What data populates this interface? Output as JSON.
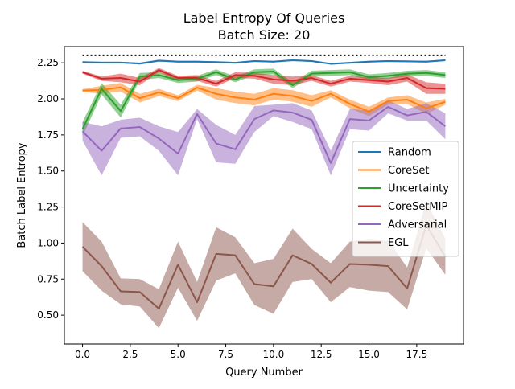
{
  "chart_data": {
    "type": "line",
    "title": "Label Entropy Of Queries",
    "subtitle": "Batch Size: 20",
    "xlabel": "Query Number",
    "ylabel": "Batch Label Entropy",
    "xlim": [
      -0.95,
      19.95
    ],
    "ylim": [
      0.3,
      2.3625
    ],
    "xticks": [
      0.0,
      2.5,
      5.0,
      7.5,
      10.0,
      12.5,
      15.0,
      17.5
    ],
    "xtick_labels": [
      "0.0",
      "2.5",
      "5.0",
      "7.5",
      "10.0",
      "12.5",
      "15.0",
      "17.5"
    ],
    "yticks": [
      0.5,
      0.75,
      1.0,
      1.25,
      1.5,
      1.75,
      2.0,
      2.25
    ],
    "ytick_labels": [
      "0.50",
      "0.75",
      "1.00",
      "1.25",
      "1.50",
      "1.75",
      "2.00",
      "2.25"
    ],
    "grid": false,
    "legend_position": "center-right",
    "reference_line": {
      "y": 2.302,
      "style": "dotted",
      "color": "#000000"
    },
    "x": [
      0,
      1,
      2,
      3,
      4,
      5,
      6,
      7,
      8,
      9,
      10,
      11,
      12,
      13,
      14,
      15,
      16,
      17,
      18,
      19
    ],
    "series": [
      {
        "name": "Random",
        "color": "#1f77b4",
        "values": [
          2.255,
          2.252,
          2.252,
          2.245,
          2.265,
          2.258,
          2.258,
          2.255,
          2.25,
          2.262,
          2.258,
          2.268,
          2.262,
          2.243,
          2.25,
          2.258,
          2.262,
          2.26,
          2.258,
          2.268
        ],
        "lower": [
          2.25,
          2.247,
          2.247,
          2.238,
          2.258,
          2.252,
          2.252,
          2.25,
          2.244,
          2.256,
          2.252,
          2.262,
          2.256,
          2.237,
          2.244,
          2.252,
          2.256,
          2.254,
          2.252,
          2.262
        ],
        "upper": [
          2.26,
          2.257,
          2.257,
          2.252,
          2.272,
          2.264,
          2.264,
          2.26,
          2.256,
          2.268,
          2.264,
          2.274,
          2.268,
          2.249,
          2.256,
          2.264,
          2.268,
          2.266,
          2.264,
          2.274
        ]
      },
      {
        "name": "CoreSet",
        "color": "#ff7f0e",
        "values": [
          2.058,
          2.062,
          2.08,
          2.005,
          2.045,
          2.005,
          2.078,
          2.035,
          2.01,
          1.995,
          2.035,
          2.02,
          1.985,
          2.035,
          1.965,
          1.912,
          1.985,
          1.995,
          1.935,
          1.98
        ],
        "lower": [
          2.048,
          2.035,
          2.05,
          1.975,
          2.02,
          1.985,
          2.058,
          1.995,
          1.97,
          1.955,
          1.995,
          1.98,
          1.945,
          2.01,
          1.935,
          1.88,
          1.96,
          1.965,
          1.895,
          1.96
        ],
        "upper": [
          2.068,
          2.09,
          2.11,
          2.035,
          2.07,
          2.025,
          2.098,
          2.075,
          2.05,
          2.035,
          2.075,
          2.06,
          2.025,
          2.06,
          1.995,
          1.945,
          2.01,
          2.025,
          1.975,
          2.0
        ]
      },
      {
        "name": "Uncertainty",
        "color": "#2ca02c",
        "values": [
          1.79,
          2.07,
          1.915,
          2.155,
          2.165,
          2.13,
          2.14,
          2.185,
          2.135,
          2.185,
          2.19,
          2.095,
          2.175,
          2.18,
          2.185,
          2.15,
          2.16,
          2.175,
          2.18,
          2.165
        ],
        "lower": [
          1.74,
          2.03,
          1.87,
          2.13,
          2.145,
          2.11,
          2.12,
          2.165,
          2.115,
          2.165,
          2.17,
          2.075,
          2.155,
          2.16,
          2.165,
          2.13,
          2.14,
          2.155,
          2.16,
          2.145
        ],
        "upper": [
          1.84,
          2.11,
          1.96,
          2.18,
          2.185,
          2.15,
          2.16,
          2.205,
          2.155,
          2.205,
          2.21,
          2.115,
          2.195,
          2.2,
          2.205,
          2.17,
          2.18,
          2.195,
          2.2,
          2.185
        ],
        "color_note": "green"
      },
      {
        "name": "CoreSetMIP",
        "color": "#d62728",
        "values": [
          2.185,
          2.14,
          2.145,
          2.12,
          2.2,
          2.145,
          2.145,
          2.105,
          2.165,
          2.16,
          2.135,
          2.125,
          2.145,
          2.105,
          2.14,
          2.13,
          2.12,
          2.145,
          2.075,
          2.07
        ],
        "lower": [
          2.175,
          2.125,
          2.115,
          2.095,
          2.185,
          2.13,
          2.125,
          2.085,
          2.145,
          2.14,
          2.105,
          2.095,
          2.125,
          2.085,
          2.12,
          2.11,
          2.095,
          2.12,
          2.035,
          2.035
        ],
        "upper": [
          2.195,
          2.155,
          2.175,
          2.145,
          2.215,
          2.16,
          2.165,
          2.125,
          2.185,
          2.18,
          2.165,
          2.155,
          2.165,
          2.125,
          2.16,
          2.15,
          2.145,
          2.17,
          2.115,
          2.105
        ]
      },
      {
        "name": "Adversarial",
        "color": "#9467bd",
        "values": [
          1.775,
          1.64,
          1.795,
          1.805,
          1.725,
          1.62,
          1.895,
          1.69,
          1.65,
          1.86,
          1.92,
          1.905,
          1.855,
          1.555,
          1.86,
          1.85,
          1.945,
          1.885,
          1.91,
          1.81
        ],
        "lower": [
          1.71,
          1.47,
          1.73,
          1.74,
          1.64,
          1.47,
          1.86,
          1.56,
          1.55,
          1.77,
          1.88,
          1.84,
          1.79,
          1.47,
          1.79,
          1.78,
          1.9,
          1.85,
          1.85,
          1.72
        ],
        "upper": [
          1.84,
          1.81,
          1.855,
          1.87,
          1.81,
          1.77,
          1.93,
          1.82,
          1.75,
          1.95,
          1.96,
          1.97,
          1.92,
          1.64,
          1.93,
          1.92,
          1.99,
          1.93,
          1.97,
          1.9
        ]
      },
      {
        "name": "EGL",
        "color": "#8c564b",
        "values": [
          0.975,
          0.84,
          0.665,
          0.66,
          0.545,
          0.85,
          0.59,
          0.925,
          0.915,
          0.715,
          0.7,
          0.915,
          0.855,
          0.725,
          0.855,
          0.85,
          0.84,
          0.685,
          1.125,
          0.905
        ],
        "lower": [
          0.805,
          0.67,
          0.575,
          0.56,
          0.41,
          0.69,
          0.46,
          0.74,
          0.79,
          0.57,
          0.51,
          0.73,
          0.75,
          0.59,
          0.695,
          0.67,
          0.66,
          0.54,
          0.965,
          0.78
        ],
        "upper": [
          1.145,
          1.01,
          0.755,
          0.75,
          0.68,
          1.01,
          0.73,
          1.11,
          1.04,
          0.86,
          0.89,
          1.1,
          0.96,
          0.86,
          1.01,
          1.03,
          1.02,
          0.83,
          1.285,
          1.03
        ]
      }
    ]
  }
}
